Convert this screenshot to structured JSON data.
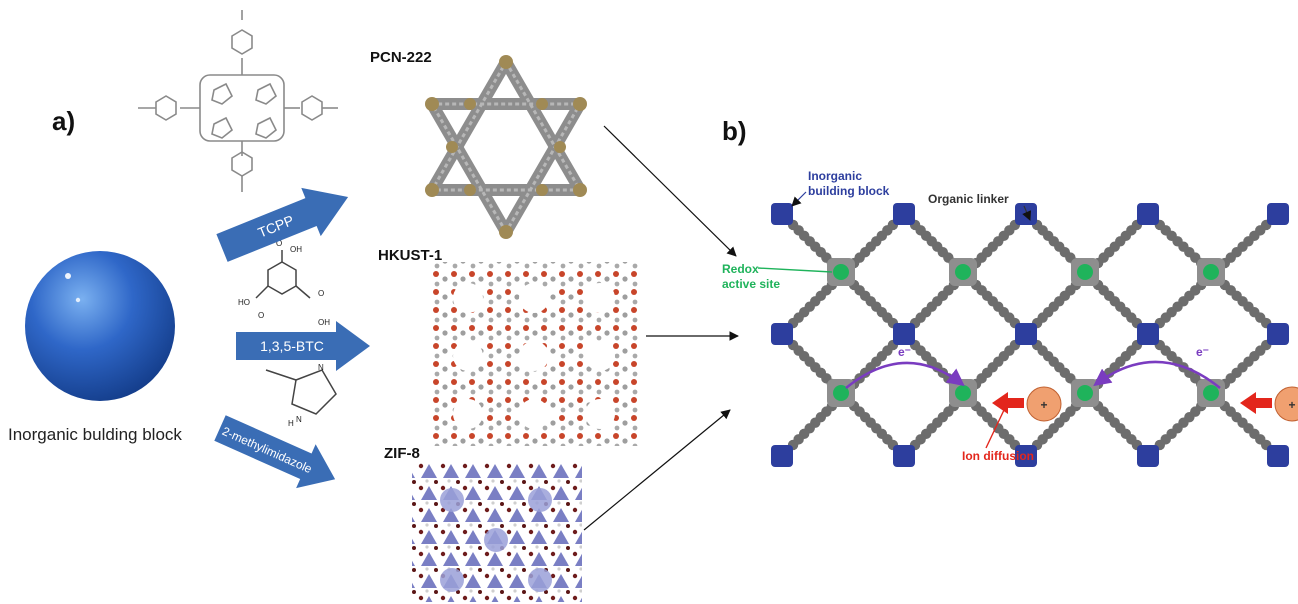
{
  "panel_a": {
    "label": "a)",
    "sphere_caption": "Inorganic bulding block",
    "linkers": [
      {
        "arrow_label": "TCPP",
        "mof": "PCN-222"
      },
      {
        "arrow_label": "1,3,5-BTC",
        "mof": "HKUST-1"
      },
      {
        "arrow_label": "2-methylimidazole",
        "mof": "ZIF-8"
      }
    ],
    "btc_atoms": {
      "top": "OH",
      "left": "HO",
      "right": "OH",
      "o": "O"
    },
    "imid_atoms": {
      "n1": "N",
      "n2": "N",
      "h": "H"
    }
  },
  "panel_b": {
    "label": "b)",
    "inorganic_label_1": "Inorganic",
    "inorganic_label_2": "building block",
    "organic_label": "Organic linker",
    "redox_label_1": "Redox",
    "redox_label_2": "active site",
    "ion_label": "Ion diffusion",
    "electron_label": "e⁻",
    "ion_symbol": "+"
  },
  "colors": {
    "arrow_blue": "#3a6db5",
    "node_blue": "#2d3e9e",
    "linker_gray": "#6d6d6d",
    "redox_green": "#1fb35b",
    "ion_orange": "#f0a070",
    "ion_red": "#e3261c",
    "electron_purple": "#7a3cc0",
    "hkust_red": "#c8452a",
    "zif_purple": "#6b6fb8"
  }
}
